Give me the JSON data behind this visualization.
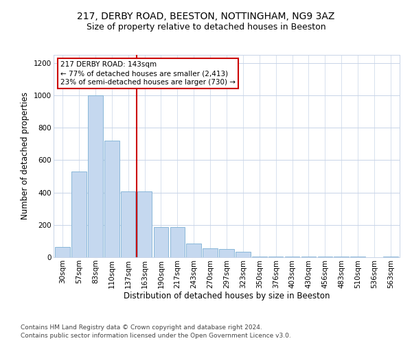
{
  "title_line1": "217, DERBY ROAD, BEESTON, NOTTINGHAM, NG9 3AZ",
  "title_line2": "Size of property relative to detached houses in Beeston",
  "xlabel": "Distribution of detached houses by size in Beeston",
  "ylabel": "Number of detached properties",
  "footer_line1": "Contains HM Land Registry data © Crown copyright and database right 2024.",
  "footer_line2": "Contains public sector information licensed under the Open Government Licence v3.0.",
  "categories": [
    "30sqm",
    "57sqm",
    "83sqm",
    "110sqm",
    "137sqm",
    "163sqm",
    "190sqm",
    "217sqm",
    "243sqm",
    "270sqm",
    "297sqm",
    "323sqm",
    "350sqm",
    "376sqm",
    "403sqm",
    "430sqm",
    "456sqm",
    "483sqm",
    "510sqm",
    "536sqm",
    "563sqm"
  ],
  "values": [
    65,
    530,
    1000,
    720,
    405,
    405,
    185,
    185,
    85,
    55,
    50,
    35,
    5,
    5,
    5,
    5,
    5,
    5,
    5,
    0,
    5
  ],
  "bar_color": "#c5d8ef",
  "bar_edge_color": "#7bafd4",
  "grid_color": "#c8d4e8",
  "annotation_box_text": "217 DERBY ROAD: 143sqm\n← 77% of detached houses are smaller (2,413)\n23% of semi-detached houses are larger (730) →",
  "vline_color": "#cc0000",
  "vline_x": 4.5,
  "ylim": [
    0,
    1250
  ],
  "yticks": [
    0,
    200,
    400,
    600,
    800,
    1000,
    1200
  ],
  "background_color": "#ffffff",
  "title1_fontsize": 10,
  "title2_fontsize": 9,
  "xlabel_fontsize": 8.5,
  "ylabel_fontsize": 8.5,
  "tick_fontsize": 7.5,
  "footer_fontsize": 6.5,
  "ann_fontsize": 7.5
}
